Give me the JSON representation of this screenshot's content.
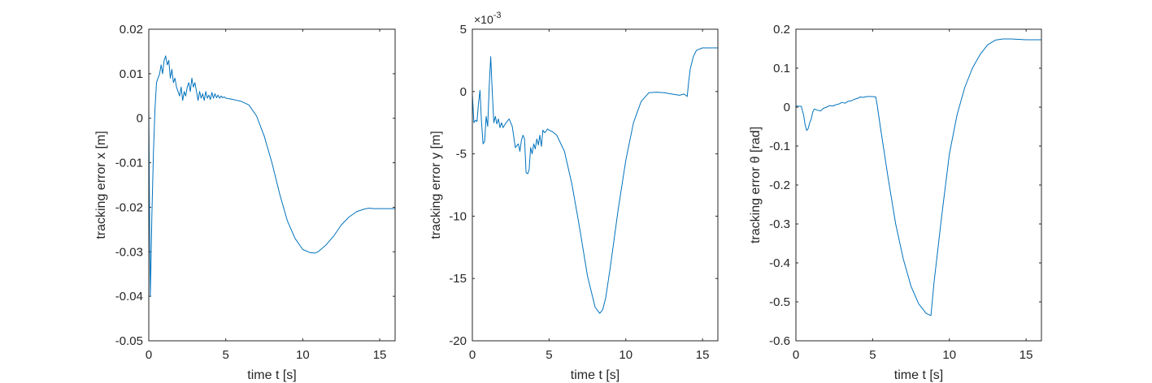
{
  "chart_data": [
    {
      "type": "line",
      "xlabel": "time t [s]",
      "ylabel": "tracking error x [m]",
      "xlim": [
        0,
        16
      ],
      "ylim": [
        -0.05,
        0.02
      ],
      "xticks": [
        0,
        5,
        10,
        15
      ],
      "xtick_labels": [
        "0",
        "5",
        "10",
        "15"
      ],
      "yticks": [
        0.02,
        0.01,
        0,
        -0.01,
        -0.02,
        -0.03,
        -0.04,
        -0.05
      ],
      "ytick_labels": [
        "0.02",
        "0.01",
        "0",
        "-0.01",
        "-0.02",
        "-0.03",
        "-0.04",
        "-0.05"
      ],
      "grid": false,
      "color": "#0072BD",
      "series": [
        {
          "x": [
            0,
            0.05,
            0.1,
            0.15,
            0.2,
            0.3,
            0.4,
            0.5,
            0.6,
            0.7,
            0.8,
            0.9,
            1.0,
            1.1,
            1.2,
            1.3,
            1.4,
            1.5,
            1.6,
            1.7,
            1.8,
            1.9,
            2.0,
            2.1,
            2.2,
            2.3,
            2.4,
            2.5,
            2.6,
            2.7,
            2.8,
            2.9,
            3.0,
            3.1,
            3.2,
            3.3,
            3.4,
            3.5,
            3.6,
            3.7,
            3.8,
            3.9,
            4.0,
            4.1,
            4.2,
            4.3,
            4.4,
            4.5,
            4.6,
            4.7,
            4.8,
            4.9,
            5.0,
            5.2,
            5.5,
            6.0,
            6.5,
            7.0,
            7.5,
            8.0,
            8.5,
            9.0,
            9.5,
            10.0,
            10.5,
            10.8,
            11.0,
            11.5,
            12.0,
            12.5,
            13.0,
            13.5,
            14.0,
            14.3,
            14.6,
            15.0,
            15.5,
            16.0
          ],
          "y": [
            0.003,
            -0.02,
            -0.04,
            -0.032,
            -0.022,
            -0.008,
            0.002,
            0.008,
            0.009,
            0.01,
            0.012,
            0.01,
            0.013,
            0.014,
            0.012,
            0.013,
            0.009,
            0.011,
            0.008,
            0.009,
            0.007,
            0.006,
            0.005,
            0.007,
            0.004,
            0.006,
            0.005,
            0.007,
            0.008,
            0.006,
            0.009,
            0.007,
            0.008,
            0.006,
            0.004,
            0.006,
            0.0045,
            0.0055,
            0.004,
            0.006,
            0.0045,
            0.0052,
            0.0042,
            0.0058,
            0.0045,
            0.0055,
            0.0046,
            0.0052,
            0.0045,
            0.005,
            0.0046,
            0.0048,
            0.0045,
            0.0044,
            0.0042,
            0.0038,
            0.003,
            0.0005,
            -0.004,
            -0.01,
            -0.017,
            -0.023,
            -0.027,
            -0.0295,
            -0.0302,
            -0.0303,
            -0.03,
            -0.0285,
            -0.0265,
            -0.024,
            -0.0222,
            -0.021,
            -0.0204,
            -0.0202,
            -0.0203,
            -0.0203,
            -0.0203,
            -0.0203
          ]
        }
      ]
    },
    {
      "type": "line",
      "xlabel": "time t [s]",
      "ylabel": "tracking error y [m]",
      "xlim": [
        0,
        16
      ],
      "ylim": [
        -20,
        5
      ],
      "multiplier_base": "×10",
      "multiplier_exp": "-3",
      "xticks": [
        0,
        5,
        10,
        15
      ],
      "xtick_labels": [
        "0",
        "5",
        "10",
        "15"
      ],
      "yticks": [
        5,
        0,
        -5,
        -10,
        -15,
        -20
      ],
      "ytick_labels": [
        "5",
        "0",
        "-5",
        "-10",
        "-15",
        "-20"
      ],
      "grid": false,
      "color": "#0072BD",
      "series": [
        {
          "x": [
            0,
            0.1,
            0.2,
            0.3,
            0.4,
            0.5,
            0.6,
            0.7,
            0.8,
            0.9,
            1.0,
            1.1,
            1.2,
            1.3,
            1.4,
            1.5,
            1.6,
            1.7,
            1.8,
            1.9,
            2.0,
            2.2,
            2.4,
            2.6,
            2.8,
            3.0,
            3.1,
            3.2,
            3.3,
            3.4,
            3.5,
            3.6,
            3.7,
            3.8,
            3.9,
            4.0,
            4.1,
            4.2,
            4.3,
            4.4,
            4.5,
            4.6,
            4.7,
            4.8,
            4.9,
            5.0,
            5.2,
            5.5,
            6.0,
            6.5,
            7.0,
            7.5,
            8.0,
            8.3,
            8.5,
            8.7,
            9.0,
            9.5,
            10.0,
            10.5,
            11.0,
            11.5,
            12.0,
            12.5,
            13.0,
            13.5,
            13.8,
            14.0,
            14.1,
            14.2,
            14.4,
            14.6,
            15.0,
            15.5,
            16.0
          ],
          "y": [
            -0.2,
            -2.5,
            -2.3,
            -2.4,
            -1.0,
            0.1,
            -2.5,
            -4.2,
            -4.0,
            -2.0,
            -2.8,
            0.5,
            2.8,
            0.0,
            -2.5,
            -2.0,
            -2.6,
            -2.2,
            -2.9,
            -2.5,
            -2.9,
            -2.5,
            -2.2,
            -2.8,
            -4.5,
            -4.2,
            -4.8,
            -3.9,
            -3.5,
            -3.8,
            -6.5,
            -6.6,
            -6.3,
            -4.5,
            -5.0,
            -4.2,
            -4.6,
            -3.8,
            -4.3,
            -3.5,
            -4.4,
            -3.1,
            -3.3,
            -3.2,
            -3.0,
            -3.1,
            -3.2,
            -3.5,
            -4.8,
            -7.5,
            -11.0,
            -14.8,
            -17.3,
            -17.8,
            -17.5,
            -16.5,
            -14.0,
            -9.5,
            -5.5,
            -2.5,
            -0.8,
            -0.1,
            -0.05,
            -0.1,
            -0.2,
            -0.3,
            -0.2,
            -0.4,
            0.8,
            1.8,
            2.8,
            3.3,
            3.5,
            3.5,
            3.5
          ]
        }
      ]
    },
    {
      "type": "line",
      "xlabel": "time t [s]",
      "ylabel": "tracking error θ [rad]",
      "xlim": [
        0,
        16
      ],
      "ylim": [
        -0.6,
        0.2
      ],
      "xticks": [
        0,
        5,
        10,
        15
      ],
      "xtick_labels": [
        "0",
        "5",
        "10",
        "15"
      ],
      "yticks": [
        0.2,
        0.1,
        0,
        -0.1,
        -0.2,
        -0.3,
        -0.4,
        -0.5,
        -0.6
      ],
      "ytick_labels": [
        "0.2",
        "0.1",
        "0",
        "-0.1",
        "-0.2",
        "-0.3",
        "-0.4",
        "-0.5",
        "-0.6"
      ],
      "grid": false,
      "color": "#0072BD",
      "series": [
        {
          "x": [
            0,
            0.2,
            0.35,
            0.5,
            0.6,
            0.7,
            0.8,
            0.9,
            1.0,
            1.1,
            1.2,
            1.4,
            1.6,
            1.8,
            2.0,
            2.2,
            2.4,
            2.6,
            2.8,
            3.0,
            3.2,
            3.4,
            3.6,
            3.8,
            4.0,
            4.2,
            4.4,
            4.6,
            5.0,
            5.2,
            5.3,
            5.5,
            6.0,
            6.5,
            7.0,
            7.5,
            8.0,
            8.5,
            8.8,
            9.0,
            9.5,
            10.0,
            10.5,
            11.0,
            11.5,
            12.0,
            12.5,
            13.0,
            13.5,
            14.0,
            14.5,
            15.0,
            15.5,
            16.0
          ],
          "y": [
            0.003,
            0.002,
            0.002,
            -0.02,
            -0.045,
            -0.06,
            -0.055,
            -0.04,
            -0.03,
            -0.012,
            -0.005,
            -0.008,
            -0.01,
            -0.003,
            0.0,
            0.004,
            0.003,
            0.006,
            0.008,
            0.012,
            0.01,
            0.015,
            0.016,
            0.02,
            0.022,
            0.026,
            0.025,
            0.027,
            0.027,
            0.026,
            0.005,
            -0.05,
            -0.18,
            -0.3,
            -0.39,
            -0.46,
            -0.505,
            -0.53,
            -0.535,
            -0.45,
            -0.28,
            -0.12,
            -0.02,
            0.05,
            0.1,
            0.135,
            0.16,
            0.172,
            0.175,
            0.175,
            0.174,
            0.173,
            0.173,
            0.173
          ]
        }
      ]
    }
  ]
}
